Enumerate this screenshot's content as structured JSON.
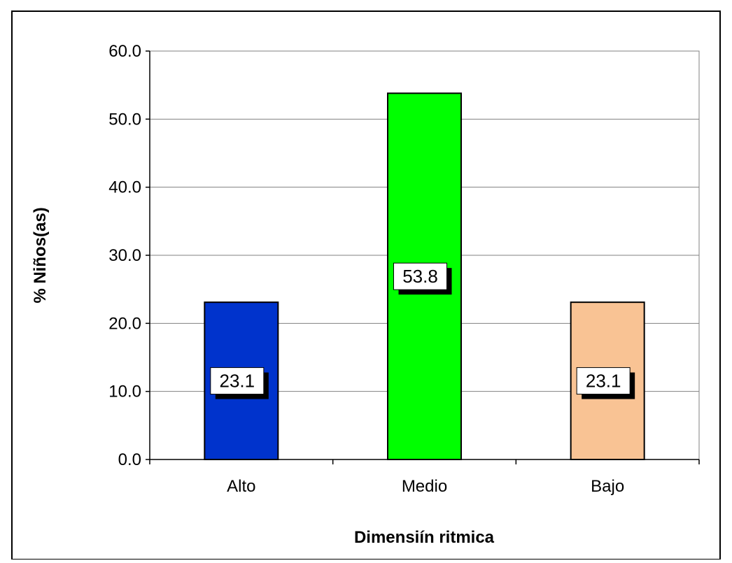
{
  "chart_data": {
    "type": "bar",
    "title": "",
    "xlabel": "Dimensiín ritmica",
    "ylabel": "% Niños(as)",
    "categories": [
      "Alto",
      "Medio",
      "Bajo"
    ],
    "values": [
      23.1,
      53.8,
      23.1
    ],
    "data_labels": [
      "23.1",
      "53.8",
      "23.1"
    ],
    "colors": [
      "#0033cc",
      "#00ff00",
      "#f9c394"
    ],
    "ylim": [
      0,
      60
    ],
    "yticks": [
      "0.0",
      "10.0",
      "20.0",
      "30.0",
      "40.0",
      "50.0",
      "60.0"
    ],
    "grid": true,
    "legend": "none"
  }
}
